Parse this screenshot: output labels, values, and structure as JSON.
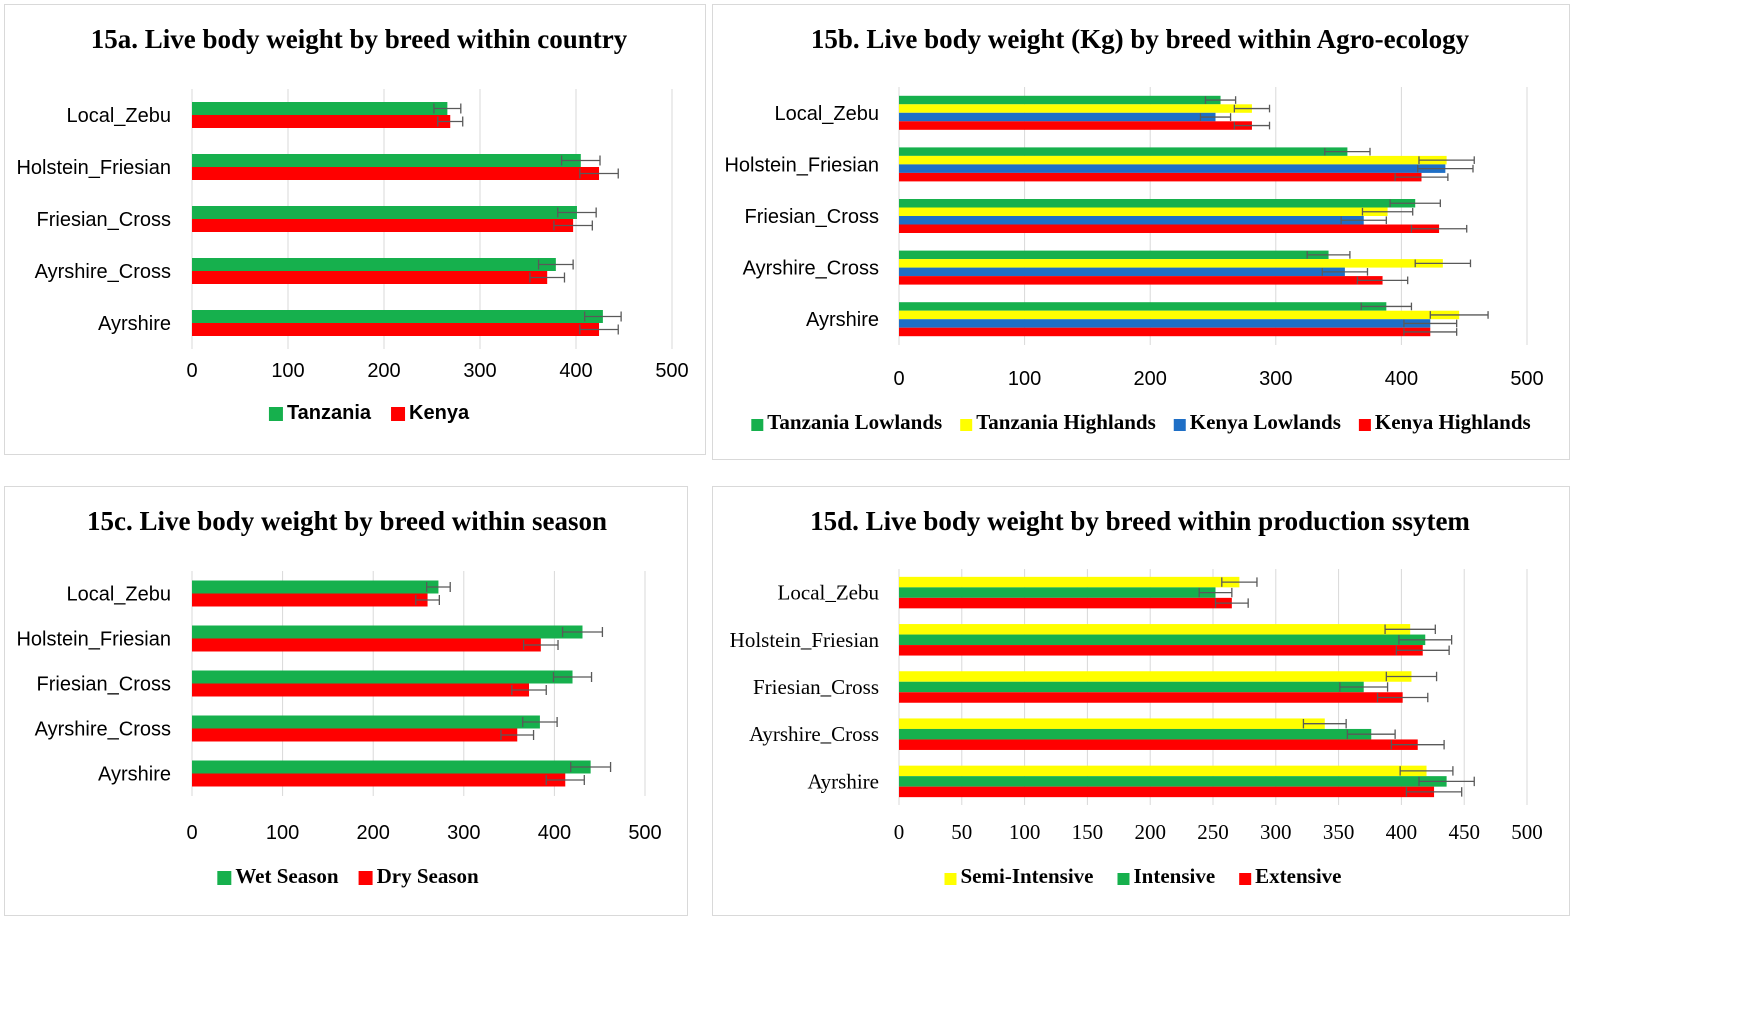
{
  "colors": {
    "green": "#16b04d",
    "red": "#ff0000",
    "yellow": "#ffff00",
    "blue": "#1f6fc6",
    "grid": "#d9d9d9",
    "errbar": "#595959"
  },
  "chart_data": [
    {
      "id": "15a",
      "type": "bar",
      "orientation": "horizontal",
      "title": "15a. Live body weight  by breed within country",
      "categories": [
        "Local_Zebu",
        "Holstein_Friesian",
        "Friesian_Cross",
        "Ayrshire_Cross",
        "Ayrshire"
      ],
      "xlim": [
        0,
        500
      ],
      "ticks": [
        "0",
        "100",
        "200",
        "300",
        "400",
        "500"
      ],
      "grid": true,
      "legend_position": "bottom",
      "series": [
        {
          "name": "Tanzania",
          "color": "#16b04d",
          "values": [
            266,
            405,
            401,
            379,
            428
          ],
          "errors": [
            14,
            20,
            20,
            18,
            19
          ]
        },
        {
          "name": "Kenya",
          "color": "#ff0000",
          "values": [
            269,
            424,
            397,
            370,
            424
          ],
          "errors": [
            13,
            20,
            20,
            18,
            20
          ]
        }
      ]
    },
    {
      "id": "15b",
      "type": "bar",
      "orientation": "horizontal",
      "title": "15b. Live body weight (Kg) by breed within Agro-ecology",
      "categories": [
        "Local_Zebu",
        "Holstein_Friesian",
        "Friesian_Cross",
        "Ayrshire_Cross",
        "Ayrshire"
      ],
      "xlim": [
        0,
        500
      ],
      "ticks": [
        "0",
        "100",
        "200",
        "300",
        "400",
        "500"
      ],
      "grid": true,
      "legend_position": "bottom",
      "series": [
        {
          "name": "Tanzania Lowlands",
          "color": "#16b04d",
          "values": [
            256,
            357,
            411,
            342,
            388
          ],
          "errors": [
            12,
            18,
            20,
            17,
            20
          ]
        },
        {
          "name": "Tanzania Highlands",
          "color": "#ffff00",
          "values": [
            281,
            436,
            389,
            433,
            446
          ],
          "errors": [
            14,
            22,
            20,
            22,
            23
          ]
        },
        {
          "name": "Kenya Lowlands",
          "color": "#1f6fc6",
          "values": [
            252,
            435,
            370,
            355,
            423
          ],
          "errors": [
            12,
            22,
            18,
            18,
            21
          ]
        },
        {
          "name": "Kenya Highlands",
          "color": "#ff0000",
          "values": [
            281,
            416,
            430,
            385,
            423
          ],
          "errors": [
            14,
            21,
            22,
            20,
            21
          ]
        }
      ]
    },
    {
      "id": "15c",
      "type": "bar",
      "orientation": "horizontal",
      "title": "15c. Live body weight by breed within season",
      "categories": [
        "Local_Zebu",
        "Holstein_Friesian",
        "Friesian_Cross",
        "Ayrshire_Cross",
        "Ayrshire"
      ],
      "xlim": [
        0,
        500
      ],
      "ticks": [
        "0",
        "100",
        "200",
        "300",
        "400",
        "500"
      ],
      "grid": true,
      "legend_position": "bottom",
      "series": [
        {
          "name": "Wet Season",
          "color": "#16b04d",
          "values": [
            272,
            431,
            420,
            384,
            440
          ],
          "errors": [
            13,
            22,
            21,
            19,
            22
          ]
        },
        {
          "name": "Dry Season",
          "color": "#ff0000",
          "values": [
            260,
            385,
            372,
            359,
            412
          ],
          "errors": [
            13,
            19,
            19,
            18,
            21
          ]
        }
      ]
    },
    {
      "id": "15d",
      "type": "bar",
      "orientation": "horizontal",
      "title": "15d. Live body weight by breed within production ssytem",
      "categories": [
        "Local_Zebu",
        "Holstein_Friesian",
        "Friesian_Cross",
        "Ayrshire_Cross",
        "Ayrshire"
      ],
      "xlim": [
        0,
        500
      ],
      "ticks": [
        "0",
        "50",
        "100",
        "150",
        "200",
        "250",
        "300",
        "350",
        "400",
        "450",
        "500"
      ],
      "grid": true,
      "legend_position": "bottom",
      "series": [
        {
          "name": "Semi-Intensive",
          "color": "#ffff00",
          "values": [
            271,
            407,
            408,
            339,
            420
          ],
          "errors": [
            14,
            20,
            20,
            17,
            21
          ]
        },
        {
          "name": "Intensive",
          "color": "#16b04d",
          "values": [
            252,
            419,
            370,
            376,
            436
          ],
          "errors": [
            13,
            21,
            19,
            19,
            22
          ]
        },
        {
          "name": "Extensive",
          "color": "#ff0000",
          "values": [
            265,
            417,
            401,
            413,
            426
          ],
          "errors": [
            13,
            21,
            20,
            21,
            22
          ]
        }
      ]
    }
  ]
}
